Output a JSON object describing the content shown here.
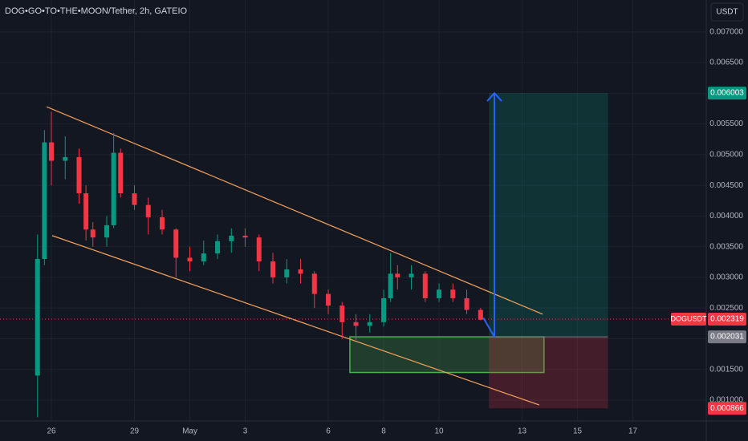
{
  "chart_data": {
    "type": "candlestick",
    "title": "DOG•GO•TO•THE•MOON/Tether, 2h, GATEIO",
    "currency_button": "USDT",
    "x": [
      -0.5,
      -0.25,
      0,
      0.5,
      1,
      1.25,
      1.5,
      2,
      2.25,
      2.5,
      3,
      3.5,
      4,
      4.5,
      5,
      5.5,
      6,
      6.5,
      7,
      7.5,
      8,
      8.5,
      9,
      9.5,
      10,
      10.5,
      11,
      11.5,
      12,
      12.25,
      12.5,
      13,
      13.5,
      14,
      14.5,
      15,
      15.5
    ],
    "open": [
      0.0014,
      0.0033,
      0.0052,
      0.0049,
      0.00496,
      0.00437,
      0.00378,
      0.00365,
      0.00385,
      0.00503,
      0.00437,
      0.00418,
      0.00398,
      0.00378,
      0.00332,
      0.00326,
      0.00339,
      0.00359,
      0.00368,
      0.00365,
      0.00326,
      0.003,
      0.00313,
      0.00306,
      0.00273,
      0.00254,
      0.00227,
      0.00221,
      0.00227,
      0.00266,
      0.00306,
      0.003,
      0.00306,
      0.00266,
      0.0028,
      0.00266,
      0.00247
    ],
    "high": [
      0.0037,
      0.0054,
      0.0057,
      0.0053,
      0.0051,
      0.0045,
      0.0039,
      0.004,
      0.00535,
      0.0051,
      0.0045,
      0.0043,
      0.0041,
      0.0038,
      0.0035,
      0.0036,
      0.0037,
      0.0038,
      0.0038,
      0.0037,
      0.0034,
      0.0033,
      0.0033,
      0.0031,
      0.0028,
      0.0026,
      0.0024,
      0.0024,
      0.0028,
      0.0034,
      0.0032,
      0.0032,
      0.0031,
      0.0029,
      0.0029,
      0.0028,
      0.0025
    ],
    "low": [
      0.00072,
      0.0032,
      0.0045,
      0.0046,
      0.0042,
      0.0036,
      0.0035,
      0.0035,
      0.0038,
      0.0043,
      0.0041,
      0.0037,
      0.0037,
      0.003,
      0.0031,
      0.0032,
      0.0033,
      0.0034,
      0.0035,
      0.0031,
      0.0029,
      0.0029,
      0.0029,
      0.0025,
      0.0024,
      0.002,
      0.00198,
      0.0021,
      0.0022,
      0.0026,
      0.0028,
      0.0028,
      0.0026,
      0.0026,
      0.0026,
      0.0024,
      0.0023
    ],
    "close": [
      0.0033,
      0.0052,
      0.0049,
      0.00496,
      0.00437,
      0.00378,
      0.00365,
      0.00385,
      0.00503,
      0.00437,
      0.00418,
      0.00398,
      0.00378,
      0.00332,
      0.00326,
      0.00339,
      0.00359,
      0.00368,
      0.00365,
      0.00326,
      0.003,
      0.00313,
      0.00306,
      0.00273,
      0.00254,
      0.00227,
      0.00221,
      0.00227,
      0.00266,
      0.00306,
      0.003,
      0.00306,
      0.00266,
      0.0028,
      0.00266,
      0.00247,
      0.00231
    ],
    "up_color": "#089981",
    "down_color": "#f23645",
    "xlim": [
      -1.855,
      23.65
    ],
    "xticks": [
      {
        "value": 0,
        "label": "26"
      },
      {
        "value": 3,
        "label": "29"
      },
      {
        "value": 5,
        "label": "May"
      },
      {
        "value": 7,
        "label": "3"
      },
      {
        "value": 10,
        "label": "6"
      },
      {
        "value": 12,
        "label": "8"
      },
      {
        "value": 14,
        "label": "10"
      },
      {
        "value": 17,
        "label": "13"
      },
      {
        "value": 19,
        "label": "15"
      },
      {
        "value": 21,
        "label": "17"
      }
    ],
    "ylim": [
      0.00066,
      0.00752
    ],
    "yticks": [
      {
        "value": 0.001,
        "label": "0.001000"
      },
      {
        "value": 0.0015,
        "label": "0.001500"
      },
      {
        "value": 0.002,
        "label": "0.002000"
      },
      {
        "value": 0.0025,
        "label": "0.002500"
      },
      {
        "value": 0.003,
        "label": "0.003000"
      },
      {
        "value": 0.0035,
        "label": "0.003500"
      },
      {
        "value": 0.004,
        "label": "0.004000"
      },
      {
        "value": 0.0045,
        "label": "0.004500"
      },
      {
        "value": 0.005,
        "label": "0.005000"
      },
      {
        "value": 0.0055,
        "label": "0.005500"
      },
      {
        "value": 0.006,
        "label": "0.006000"
      },
      {
        "value": 0.0065,
        "label": "0.006500"
      },
      {
        "value": 0.007,
        "label": "0.007000"
      }
    ],
    "grid": true,
    "trendlines": [
      {
        "x": [
          -0.17,
          17.74
        ],
        "y": [
          0.00578,
          0.0024
        ],
        "color": "#f7a35c"
      },
      {
        "x": [
          0.03,
          17.62
        ],
        "y": [
          0.00368,
          0.00092
        ],
        "color": "#f7a35c"
      }
    ],
    "zone": {
      "x": [
        10.78,
        17.79
      ],
      "y": [
        0.00145,
        0.002031
      ],
      "color": "#4caf50"
    },
    "position": {
      "x": [
        15.8,
        20.1
      ],
      "target": 0.006003,
      "entry": 0.002031,
      "stop": 0.000866,
      "arrow_x": 16.0,
      "arrow_from": [
        15.6,
        0.00234
      ]
    },
    "current_price": {
      "name": "DOGUSDT",
      "value": 0.002319,
      "label": "0.002319",
      "color": "#f23645"
    },
    "markers": [
      {
        "value": 0.006003,
        "label": "0.006003",
        "color": "#089981"
      },
      {
        "value": 0.002031,
        "label": "0.002031",
        "color": "#787b86"
      },
      {
        "value": 0.000866,
        "label": "0.000866",
        "color": "#f23645"
      }
    ]
  }
}
